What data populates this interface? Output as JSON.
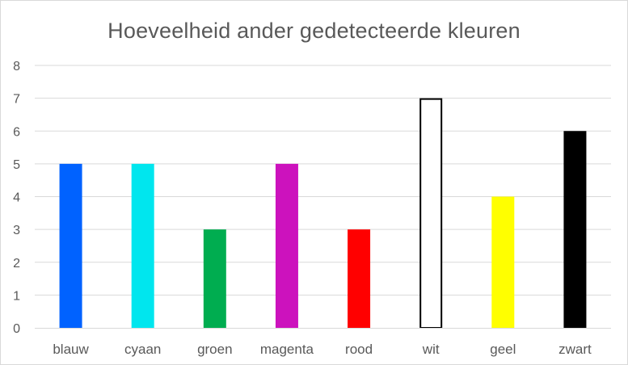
{
  "chart_data": {
    "type": "bar",
    "title": "Hoeveelheid ander gedetecteerde kleuren",
    "xlabel": "",
    "ylabel": "",
    "categories": [
      "blauw",
      "cyaan",
      "groen",
      "magenta",
      "rood",
      "wit",
      "geel",
      "zwart"
    ],
    "values": [
      5,
      5,
      3,
      5,
      3,
      7,
      4,
      6
    ],
    "bar_colors": [
      "#0062ff",
      "#00e6ee",
      "#00ad50",
      "#cc12bd",
      "#ff0000",
      "#ffffff",
      "#ffff00",
      "#000000"
    ],
    "bar_outline_colors": [
      "none",
      "none",
      "none",
      "none",
      "none",
      "#000000",
      "none",
      "none"
    ],
    "ylim": [
      0,
      8
    ],
    "yticks": [
      "0",
      "1",
      "2",
      "3",
      "4",
      "5",
      "6",
      "7",
      "8"
    ],
    "grid": true,
    "legend": "none"
  }
}
